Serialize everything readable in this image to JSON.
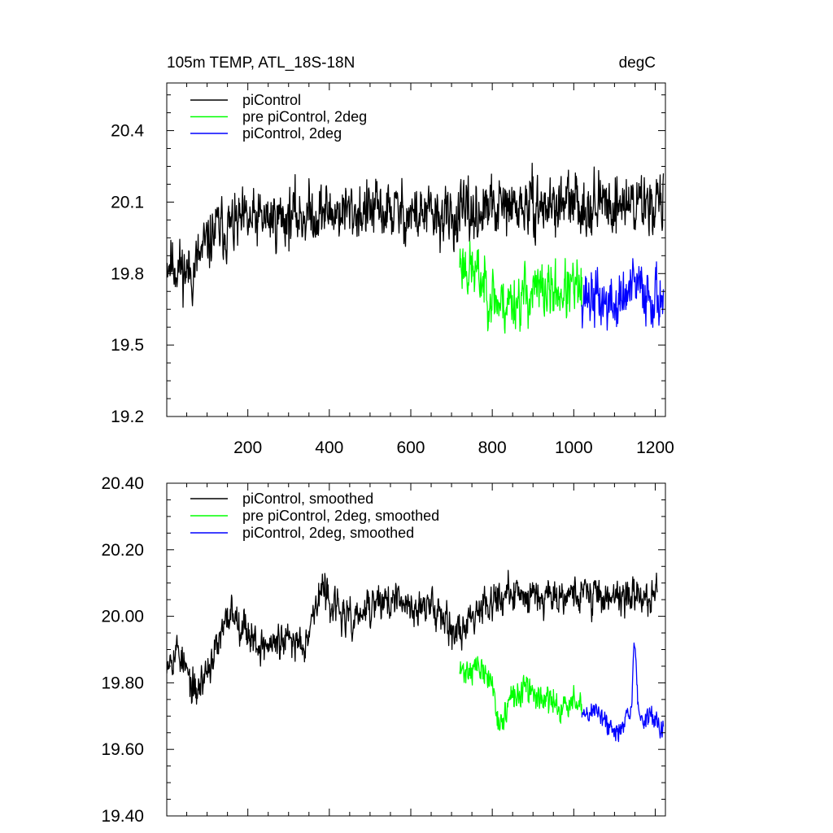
{
  "chart_data": [
    {
      "type": "line",
      "title": "105m TEMP, ATL_18S-18N",
      "units": "degC",
      "xlabel": "",
      "ylabel": "",
      "xlim": [
        1,
        1225
      ],
      "ylim": [
        19.2,
        20.6
      ],
      "xticks": [
        200,
        400,
        600,
        800,
        1000,
        1200
      ],
      "xtick_labels": [
        "200",
        "400",
        "600",
        "800",
        "1000",
        "1200"
      ],
      "yticks": [
        19.2,
        19.5,
        19.8,
        20.1,
        20.4
      ],
      "ytick_labels": [
        "19.2",
        "19.5",
        "19.8",
        "20.1",
        "20.4"
      ],
      "legend_position": "top-left",
      "series": [
        {
          "name": "piControl",
          "color": "#000000",
          "start": 1,
          "end": 1220,
          "base": [
            [
              1,
              19.86
            ],
            [
              60,
              19.8
            ],
            [
              120,
              19.98
            ],
            [
              250,
              20.03
            ],
            [
              400,
              20.06
            ],
            [
              550,
              20.06
            ],
            [
              700,
              20.03
            ],
            [
              800,
              20.07
            ],
            [
              1000,
              20.09
            ],
            [
              1220,
              20.1
            ]
          ],
          "noise": 0.1,
          "seed": 11
        },
        {
          "name": "pre piControl, 2deg",
          "color": "#00ff00",
          "start": 720,
          "end": 1020,
          "base": [
            [
              720,
              19.86
            ],
            [
              770,
              19.78
            ],
            [
              820,
              19.67
            ],
            [
              900,
              19.72
            ],
            [
              1020,
              19.73
            ]
          ],
          "noise": 0.1,
          "seed": 23
        },
        {
          "name": "piControl, 2deg",
          "color": "#0000ff",
          "start": 1020,
          "end": 1220,
          "base": [
            [
              1020,
              19.72
            ],
            [
              1100,
              19.66
            ],
            [
              1150,
              19.74
            ],
            [
              1220,
              19.7
            ]
          ],
          "noise": 0.1,
          "seed": 37
        }
      ]
    },
    {
      "type": "line",
      "title": "",
      "xlabel": "",
      "ylabel": "",
      "xlim": [
        1,
        1225
      ],
      "ylim": [
        19.4,
        20.4
      ],
      "xticks": [
        200,
        400,
        600,
        800,
        1000,
        1200
      ],
      "xtick_labels": [],
      "yticks": [
        19.4,
        19.6,
        19.8,
        20.0,
        20.2,
        20.4
      ],
      "ytick_labels": [
        "19.40",
        "19.60",
        "19.80",
        "20.00",
        "20.20",
        "20.40"
      ],
      "legend_position": "top-left",
      "series": [
        {
          "name": "piControl, smoothed",
          "color": "#000000",
          "start": 1,
          "end": 1205,
          "base": [
            [
              1,
              19.88
            ],
            [
              30,
              19.9
            ],
            [
              70,
              19.76
            ],
            [
              130,
              19.92
            ],
            [
              160,
              20.02
            ],
            [
              230,
              19.91
            ],
            [
              340,
              19.93
            ],
            [
              380,
              20.08
            ],
            [
              450,
              19.98
            ],
            [
              530,
              20.05
            ],
            [
              600,
              20.03
            ],
            [
              680,
              20.02
            ],
            [
              710,
              19.94
            ],
            [
              780,
              20.05
            ],
            [
              900,
              20.07
            ],
            [
              1000,
              20.07
            ],
            [
              1100,
              20.06
            ],
            [
              1205,
              20.06
            ]
          ],
          "noise": 0.045,
          "seed": 53
        },
        {
          "name": "pre piControl, 2deg, smoothed",
          "color": "#00ff00",
          "start": 720,
          "end": 1020,
          "base": [
            [
              720,
              19.83
            ],
            [
              760,
              19.85
            ],
            [
              800,
              19.8
            ],
            [
              820,
              19.66
            ],
            [
              840,
              19.74
            ],
            [
              880,
              19.78
            ],
            [
              960,
              19.73
            ],
            [
              1020,
              19.74
            ]
          ],
          "noise": 0.035,
          "seed": 71
        },
        {
          "name": "piControl, 2deg, smoothed",
          "color": "#0000ff",
          "start": 1020,
          "end": 1220,
          "base": [
            [
              1020,
              19.7
            ],
            [
              1060,
              19.72
            ],
            [
              1100,
              19.64
            ],
            [
              1140,
              19.72
            ],
            [
              1150,
              19.92
            ],
            [
              1160,
              19.7
            ],
            [
              1220,
              19.68
            ]
          ],
          "noise": 0.03,
          "seed": 89
        }
      ]
    }
  ]
}
